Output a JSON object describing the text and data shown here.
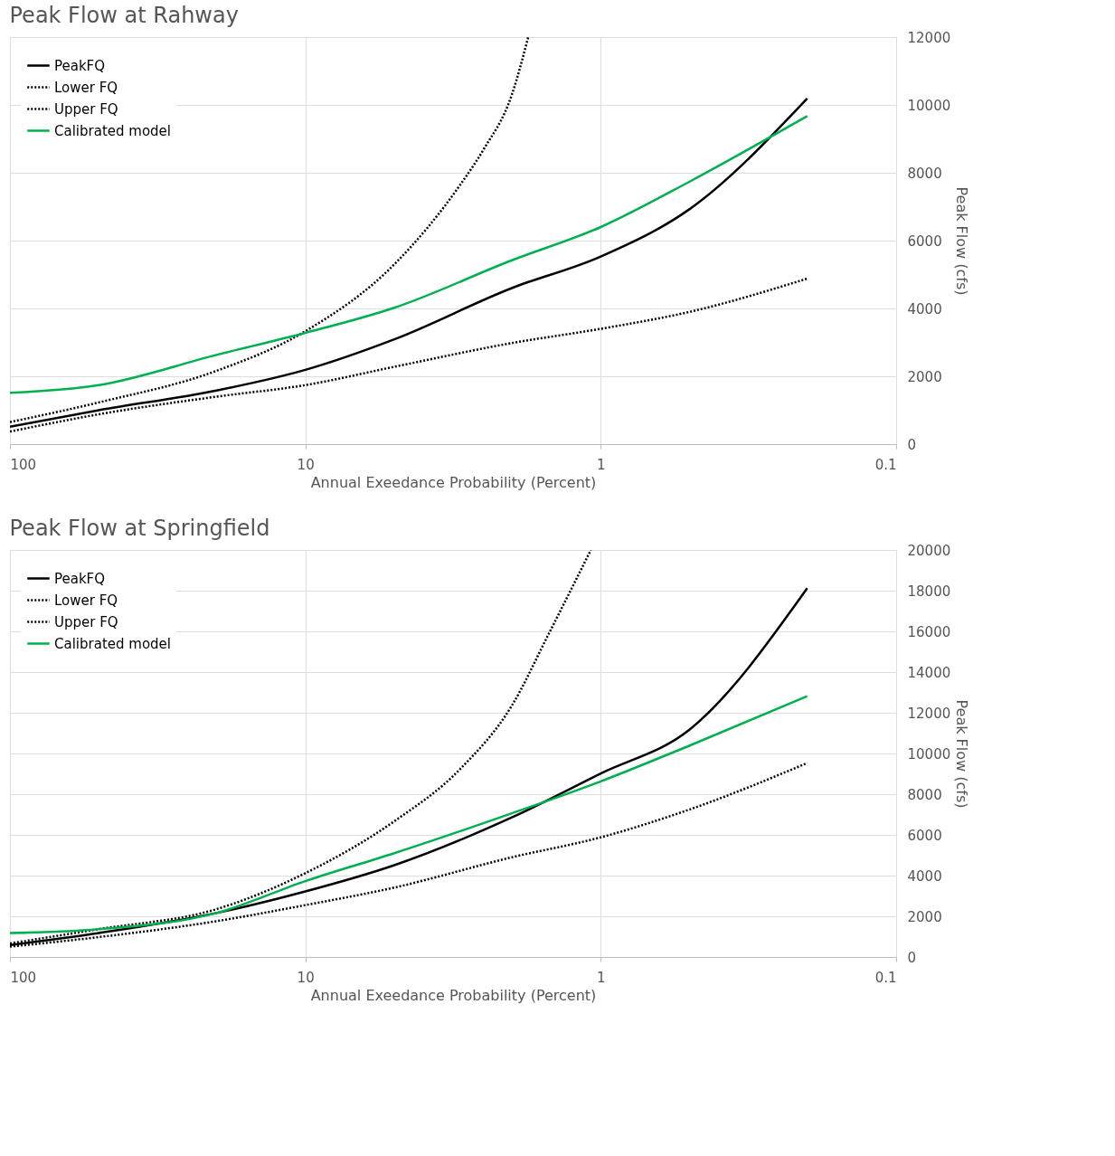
{
  "chart_data": [
    {
      "type": "line",
      "title": "Peak Flow at Rahway",
      "xlabel": "Annual Exeedance Probability (Percent)",
      "ylabel": "Peak Flow (cfs)",
      "log": "x",
      "xlim": [
        100,
        0.1
      ],
      "xticks": [
        100,
        10,
        1,
        0.1
      ],
      "ylim": [
        0,
        12000
      ],
      "yticks": [
        0,
        2000,
        4000,
        6000,
        8000,
        10000,
        12000
      ],
      "grid": true,
      "legend": "top left",
      "series": [
        {
          "name": "PeakFQ",
          "color": "#000000",
          "line_style": "solid",
          "x": [
            100,
            50,
            20,
            10,
            5,
            2,
            1,
            0.5,
            0.2
          ],
          "values": [
            510,
            1000,
            1580,
            2190,
            3090,
            4600,
            5530,
            6930,
            10190
          ]
        },
        {
          "name": "Lower FQ",
          "color": "#000000",
          "line_style": "dotted",
          "x": [
            100,
            50,
            20,
            10,
            5,
            2,
            1,
            0.5,
            0.2
          ],
          "values": [
            370,
            880,
            1400,
            1740,
            2280,
            2980,
            3400,
            3900,
            4880
          ]
        },
        {
          "name": "Upper FQ",
          "color": "#000000",
          "line_style": "dotted",
          "x": [
            100,
            50,
            20,
            10,
            5,
            3,
            2.5,
            2,
            1.76
          ],
          "values": [
            650,
            1230,
            2160,
            3330,
            5300,
            7630,
            8670,
            10300,
            12000
          ]
        },
        {
          "name": "Calibrated model",
          "color": "#00b050",
          "line_style": "solid",
          "x": [
            100,
            50,
            20,
            10,
            5,
            2,
            1,
            0.5,
            0.2
          ],
          "values": [
            1510,
            1740,
            2630,
            3280,
            4020,
            5420,
            6400,
            7740,
            9670
          ]
        }
      ]
    },
    {
      "type": "line",
      "title": "Peak Flow at Springfield",
      "xlabel": "Annual Exeedance Probability (Percent)",
      "ylabel": "Peak Flow (cfs)",
      "log": "x",
      "xlim": [
        100,
        0.1
      ],
      "xticks": [
        100,
        10,
        1,
        0.1
      ],
      "ylim": [
        0,
        20000
      ],
      "yticks": [
        0,
        2000,
        4000,
        6000,
        8000,
        10000,
        12000,
        14000,
        16000,
        18000,
        20000
      ],
      "grid": true,
      "legend": "top left",
      "series": [
        {
          "name": "PeakFQ",
          "color": "#000000",
          "line_style": "solid",
          "x": [
            100,
            50,
            20,
            10,
            5,
            2,
            1,
            0.5,
            0.2
          ],
          "values": [
            590,
            1180,
            2160,
            3220,
            4510,
            6860,
            9020,
            11180,
            18120
          ]
        },
        {
          "name": "Lower FQ",
          "color": "#000000",
          "line_style": "dotted",
          "x": [
            100,
            50,
            20,
            10,
            5,
            2,
            1,
            0.5,
            0.2
          ],
          "values": [
            510,
            980,
            1760,
            2550,
            3410,
            4900,
            5880,
            7250,
            9530
          ]
        },
        {
          "name": "Upper FQ",
          "color": "#000000",
          "line_style": "dotted",
          "x": [
            100,
            50,
            20,
            10,
            5,
            3,
            2,
            1.5,
            1.08
          ],
          "values": [
            670,
            1370,
            2350,
            4120,
            6670,
            9220,
            12350,
            15880,
            20000
          ]
        },
        {
          "name": "Calibrated model",
          "color": "#00b050",
          "line_style": "solid",
          "x": [
            100,
            50,
            20,
            10,
            5,
            2,
            1,
            0.5,
            0.2
          ],
          "values": [
            1180,
            1370,
            2160,
            3730,
            5100,
            7060,
            8630,
            10390,
            12820
          ]
        }
      ]
    }
  ]
}
